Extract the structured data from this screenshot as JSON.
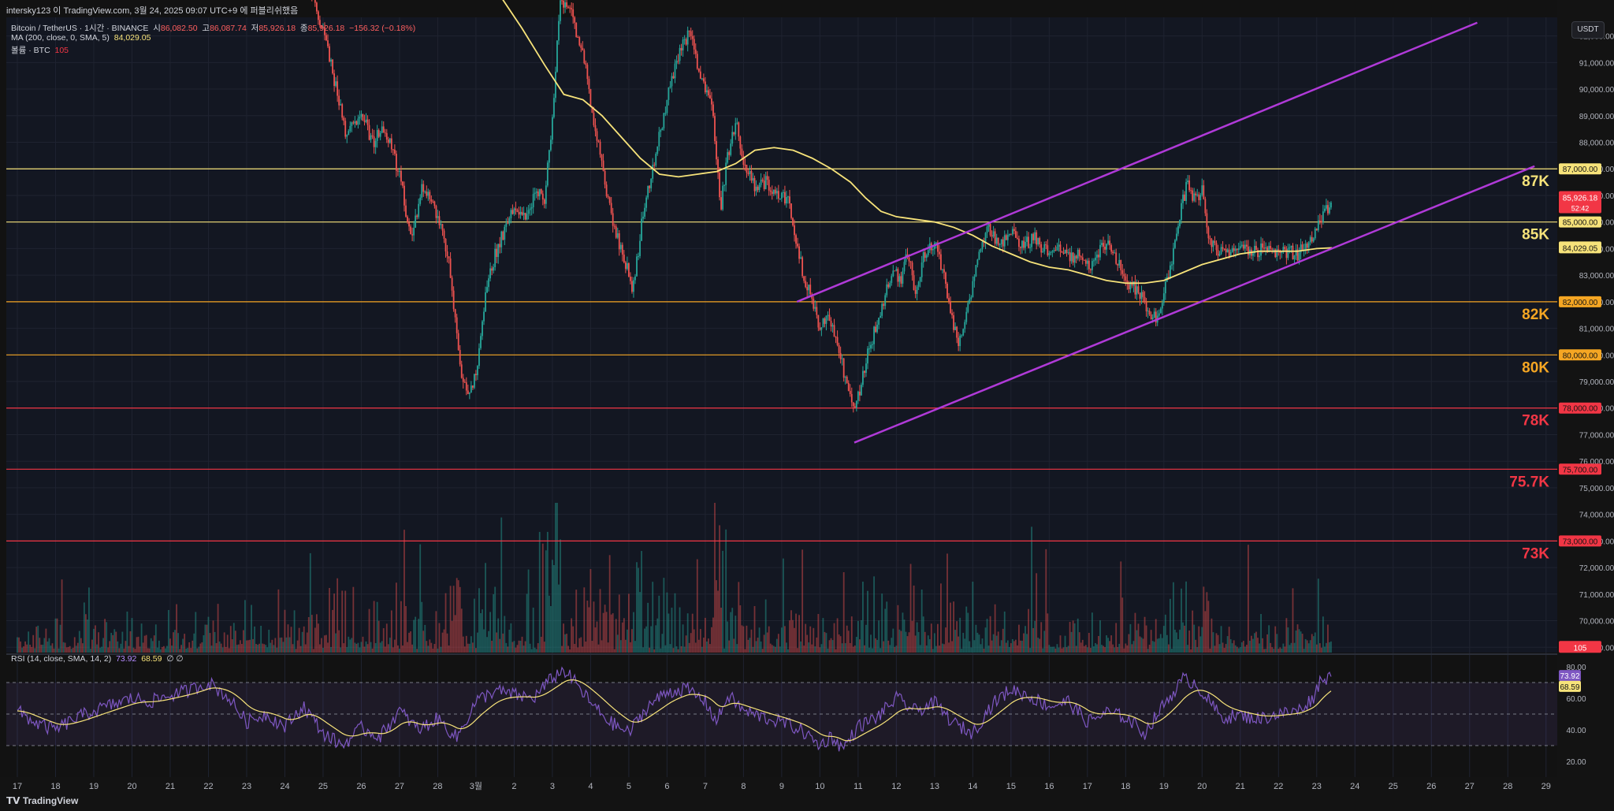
{
  "header": {
    "title": "intersky123 이 TradingView.com, 3월 24, 2025 09:07 UTC+9 에 퍼블리쉬했음"
  },
  "legend": {
    "symbol": "Bitcoin / TetherUS · 1시간 · BINANCE",
    "open_label": "시",
    "open": "86,082.50",
    "high_label": "고",
    "high": "86,087.74",
    "low_label": "저",
    "low": "85,926.18",
    "close_label": "종",
    "close": "85,926.18",
    "change": "−156.32 (−0.18%)",
    "ma_label": "MA (200, close, 0, SMA, 5)",
    "ma_value": "84,029.05",
    "volume_label": "볼륨 · BTC",
    "volume_value": "105",
    "rsi_label": "RSI (14, close, SMA, 14, 2)",
    "rsi_value": "73.92",
    "rsi_ma_value": "68.59",
    "rsi_extra": "∅ ∅"
  },
  "currency_button": "USDT",
  "footer": {
    "logo": "TradingView"
  },
  "colors": {
    "background": "#131722",
    "up": "#26a69a",
    "down": "#ef5350",
    "ma": "#f7e37a",
    "channel": "#b03ad8",
    "rsi": "#7e57c2"
  },
  "chart_data": {
    "type": "candlestick",
    "price_axis": {
      "ticks": [
        "92,000.00",
        "91,000.00",
        "90,000.00",
        "89,000.00",
        "88,000.00",
        "87,000.00",
        "86,000.00",
        "85,000.00",
        "84,000.00",
        "83,000.00",
        "82,000.00",
        "81,000.00",
        "80,000.00",
        "79,000.00",
        "78,000.00",
        "77,000.00",
        "76,000.00",
        "75,000.00",
        "74,000.00",
        "73,000.00",
        "72,000.00",
        "71,000.00",
        "70,000.00",
        "69,000.00"
      ],
      "min": 68800,
      "max": 92700
    },
    "time_axis": {
      "labels": [
        "17",
        "18",
        "19",
        "20",
        "21",
        "22",
        "23",
        "24",
        "25",
        "26",
        "27",
        "28",
        "3월",
        "2",
        "3",
        "4",
        "5",
        "6",
        "7",
        "8",
        "9",
        "10",
        "11",
        "12",
        "13",
        "14",
        "15",
        "16",
        "17",
        "18",
        "19",
        "20",
        "21",
        "22",
        "23",
        "24",
        "25",
        "26",
        "27",
        "28",
        "29"
      ]
    },
    "horizontal_levels": [
      {
        "price": 87000,
        "label": "87K",
        "axis_label": "87,000.00",
        "color": "#f7e37a"
      },
      {
        "price": 85000,
        "label": "85K",
        "axis_label": "85,000.00",
        "color": "#f7e37a"
      },
      {
        "price": 82000,
        "label": "82K",
        "axis_label": "82,000.00",
        "color": "#f5a623"
      },
      {
        "price": 80000,
        "label": "80K",
        "axis_label": "80,000.00",
        "color": "#f5a623"
      },
      {
        "price": 78000,
        "label": "78K",
        "axis_label": "78,000.00",
        "color": "#f23645"
      },
      {
        "price": 75700,
        "label": "75.7K",
        "axis_label": "75,700.00",
        "color": "#f23645"
      },
      {
        "price": 73000,
        "label": "73K",
        "axis_label": "73,000.00",
        "color": "#f23645"
      }
    ],
    "price_badges": [
      {
        "price": 85926.18,
        "text": "85,926.18",
        "subtext": "52:42",
        "color": "#f23645"
      },
      {
        "price": 84029.05,
        "text": "84,029.05",
        "color": "#f7e37a"
      },
      {
        "price": 69000,
        "text": "105",
        "color": "#f23645"
      }
    ],
    "close_path": [
      [
        0.0,
        97500
      ],
      [
        0.5,
        96800
      ],
      [
        1.0,
        97200
      ],
      [
        1.5,
        96300
      ],
      [
        2.0,
        96900
      ],
      [
        2.5,
        96500
      ],
      [
        3.0,
        97000
      ],
      [
        3.5,
        96200
      ],
      [
        4.0,
        96800
      ],
      [
        4.5,
        96400
      ],
      [
        5.0,
        97100
      ],
      [
        5.5,
        96000
      ],
      [
        6.0,
        95600
      ],
      [
        6.5,
        95900
      ],
      [
        7.0,
        95400
      ],
      [
        7.5,
        94800
      ],
      [
        8.0,
        92200
      ],
      [
        8.3,
        90300
      ],
      [
        8.6,
        88200
      ],
      [
        9.0,
        89100
      ],
      [
        9.3,
        88000
      ],
      [
        9.6,
        88600
      ],
      [
        10.0,
        86800
      ],
      [
        10.3,
        84300
      ],
      [
        10.6,
        86300
      ],
      [
        11.0,
        85200
      ],
      [
        11.3,
        83400
      ],
      [
        11.6,
        79400
      ],
      [
        11.8,
        78500
      ],
      [
        12.0,
        79200
      ],
      [
        12.3,
        82800
      ],
      [
        12.6,
        84200
      ],
      [
        13.0,
        85500
      ],
      [
        13.3,
        85200
      ],
      [
        13.6,
        86200
      ],
      [
        13.8,
        85900
      ],
      [
        14.0,
        88900
      ],
      [
        14.2,
        93500
      ],
      [
        14.5,
        92800
      ],
      [
        14.8,
        91400
      ],
      [
        15.0,
        89500
      ],
      [
        15.3,
        87100
      ],
      [
        15.6,
        84800
      ],
      [
        15.9,
        83600
      ],
      [
        16.1,
        82300
      ],
      [
        16.4,
        85600
      ],
      [
        16.7,
        87500
      ],
      [
        17.0,
        89600
      ],
      [
        17.3,
        91200
      ],
      [
        17.6,
        92300
      ],
      [
        17.9,
        90300
      ],
      [
        18.2,
        89100
      ],
      [
        18.4,
        85500
      ],
      [
        18.6,
        87600
      ],
      [
        18.8,
        88800
      ],
      [
        19.0,
        87200
      ],
      [
        19.3,
        86300
      ],
      [
        19.6,
        86500
      ],
      [
        19.9,
        86100
      ],
      [
        20.2,
        85700
      ],
      [
        20.4,
        84200
      ],
      [
        20.6,
        82800
      ],
      [
        20.8,
        82100
      ],
      [
        21.0,
        80800
      ],
      [
        21.2,
        81700
      ],
      [
        21.5,
        80200
      ],
      [
        21.7,
        78800
      ],
      [
        21.9,
        77800
      ],
      [
        22.1,
        79100
      ],
      [
        22.3,
        80300
      ],
      [
        22.5,
        81200
      ],
      [
        22.7,
        82200
      ],
      [
        22.9,
        83300
      ],
      [
        23.1,
        82700
      ],
      [
        23.3,
        83800
      ],
      [
        23.5,
        82400
      ],
      [
        23.7,
        83600
      ],
      [
        24.0,
        84300
      ],
      [
        24.2,
        83200
      ],
      [
        24.4,
        81800
      ],
      [
        24.6,
        80400
      ],
      [
        24.8,
        81300
      ],
      [
        25.0,
        82700
      ],
      [
        25.2,
        84200
      ],
      [
        25.4,
        84700
      ],
      [
        25.7,
        84200
      ],
      [
        26.0,
        84600
      ],
      [
        26.3,
        84100
      ],
      [
        26.6,
        84400
      ],
      [
        26.9,
        83900
      ],
      [
        27.2,
        84200
      ],
      [
        27.5,
        83600
      ],
      [
        27.8,
        83900
      ],
      [
        28.1,
        83200
      ],
      [
        28.4,
        84300
      ],
      [
        28.7,
        83800
      ],
      [
        29.0,
        82800
      ],
      [
        29.3,
        82400
      ],
      [
        29.6,
        81700
      ],
      [
        29.8,
        81300
      ],
      [
        30.0,
        82400
      ],
      [
        30.2,
        83400
      ],
      [
        30.4,
        85200
      ],
      [
        30.6,
        86400
      ],
      [
        30.8,
        85900
      ],
      [
        31.0,
        86200
      ],
      [
        31.2,
        84200
      ],
      [
        31.4,
        84000
      ],
      [
        31.7,
        83700
      ],
      [
        32.0,
        84100
      ],
      [
        32.3,
        83800
      ],
      [
        32.6,
        84000
      ],
      [
        32.9,
        83700
      ],
      [
        33.2,
        83900
      ],
      [
        33.5,
        83800
      ],
      [
        33.8,
        84200
      ],
      [
        34.0,
        84700
      ],
      [
        34.2,
        85300
      ],
      [
        34.4,
        85900
      ]
    ],
    "ma200_path": [
      [
        11.2,
        96500
      ],
      [
        11.8,
        95200
      ],
      [
        12.5,
        93800
      ],
      [
        13.2,
        92300
      ],
      [
        13.8,
        90900
      ],
      [
        14.3,
        89800
      ],
      [
        14.8,
        89600
      ],
      [
        15.3,
        89000
      ],
      [
        15.8,
        88200
      ],
      [
        16.3,
        87400
      ],
      [
        16.8,
        86800
      ],
      [
        17.3,
        86700
      ],
      [
        17.8,
        86800
      ],
      [
        18.3,
        86900
      ],
      [
        18.8,
        87200
      ],
      [
        19.3,
        87700
      ],
      [
        19.8,
        87800
      ],
      [
        20.3,
        87700
      ],
      [
        20.8,
        87400
      ],
      [
        21.3,
        87000
      ],
      [
        21.8,
        86500
      ],
      [
        22.2,
        85900
      ],
      [
        22.6,
        85400
      ],
      [
        23.0,
        85200
      ],
      [
        23.5,
        85100
      ],
      [
        24.0,
        85000
      ],
      [
        24.5,
        84800
      ],
      [
        25.0,
        84500
      ],
      [
        25.5,
        84100
      ],
      [
        26.0,
        83800
      ],
      [
        26.5,
        83500
      ],
      [
        27.0,
        83300
      ],
      [
        27.5,
        83200
      ],
      [
        28.0,
        83000
      ],
      [
        28.5,
        82800
      ],
      [
        29.0,
        82700
      ],
      [
        29.5,
        82700
      ],
      [
        30.0,
        82800
      ],
      [
        30.5,
        83100
      ],
      [
        31.0,
        83400
      ],
      [
        31.5,
        83600
      ],
      [
        32.0,
        83800
      ],
      [
        32.5,
        83900
      ],
      [
        33.0,
        83900
      ],
      [
        33.5,
        83900
      ],
      [
        34.0,
        84000
      ],
      [
        34.4,
        84029
      ]
    ],
    "channel_lines": [
      {
        "from": [
          20.4,
          82000
        ],
        "to": [
          38.2,
          92500
        ]
      },
      {
        "from": [
          21.9,
          76700
        ],
        "to": [
          39.7,
          87100
        ]
      }
    ],
    "volume": {
      "unit": "BTC",
      "last": 105
    },
    "rsi": {
      "ticks": [
        "80.00",
        "60.00",
        "40.00",
        "20.00"
      ],
      "min": 10,
      "max": 85,
      "upper": 70,
      "middle": 50,
      "lower": 30,
      "last_value": 73.92,
      "last_ma": 68.59,
      "path": [
        [
          0.0,
          52
        ],
        [
          0.5,
          44
        ],
        [
          1.0,
          40
        ],
        [
          1.5,
          47
        ],
        [
          2.0,
          52
        ],
        [
          2.5,
          56
        ],
        [
          3.0,
          60
        ],
        [
          3.5,
          58
        ],
        [
          4.0,
          62
        ],
        [
          4.5,
          65
        ],
        [
          5.0,
          70
        ],
        [
          5.5,
          61
        ],
        [
          6.0,
          45
        ],
        [
          6.5,
          50
        ],
        [
          7.0,
          42
        ],
        [
          7.5,
          55
        ],
        [
          8.0,
          38
        ],
        [
          8.5,
          30
        ],
        [
          9.0,
          41
        ],
        [
          9.5,
          36
        ],
        [
          10.0,
          52
        ],
        [
          10.5,
          40
        ],
        [
          11.0,
          47
        ],
        [
          11.5,
          35
        ],
        [
          12.0,
          58
        ],
        [
          12.5,
          65
        ],
        [
          13.0,
          62
        ],
        [
          13.5,
          60
        ],
        [
          14.0,
          73
        ],
        [
          14.3,
          78
        ],
        [
          14.6,
          70
        ],
        [
          15.0,
          57
        ],
        [
          15.5,
          45
        ],
        [
          16.0,
          38
        ],
        [
          16.5,
          55
        ],
        [
          17.0,
          64
        ],
        [
          17.5,
          66
        ],
        [
          18.0,
          58
        ],
        [
          18.3,
          45
        ],
        [
          18.6,
          62
        ],
        [
          19.0,
          52
        ],
        [
          19.5,
          48
        ],
        [
          20.0,
          45
        ],
        [
          20.5,
          40
        ],
        [
          21.0,
          30
        ],
        [
          21.3,
          36
        ],
        [
          21.6,
          28
        ],
        [
          22.0,
          42
        ],
        [
          22.5,
          48
        ],
        [
          23.0,
          60
        ],
        [
          23.5,
          52
        ],
        [
          24.0,
          57
        ],
        [
          24.5,
          44
        ],
        [
          25.0,
          38
        ],
        [
          25.5,
          56
        ],
        [
          26.0,
          66
        ],
        [
          26.5,
          61
        ],
        [
          27.0,
          55
        ],
        [
          27.5,
          58
        ],
        [
          28.0,
          45
        ],
        [
          28.5,
          51
        ],
        [
          29.0,
          48
        ],
        [
          29.5,
          38
        ],
        [
          30.0,
          56
        ],
        [
          30.5,
          72
        ],
        [
          30.8,
          70
        ],
        [
          31.0,
          64
        ],
        [
          31.5,
          48
        ],
        [
          32.0,
          49
        ],
        [
          32.5,
          47
        ],
        [
          33.0,
          50
        ],
        [
          33.5,
          52
        ],
        [
          33.9,
          60
        ],
        [
          34.1,
          72
        ],
        [
          34.4,
          73.9
        ]
      ]
    }
  }
}
